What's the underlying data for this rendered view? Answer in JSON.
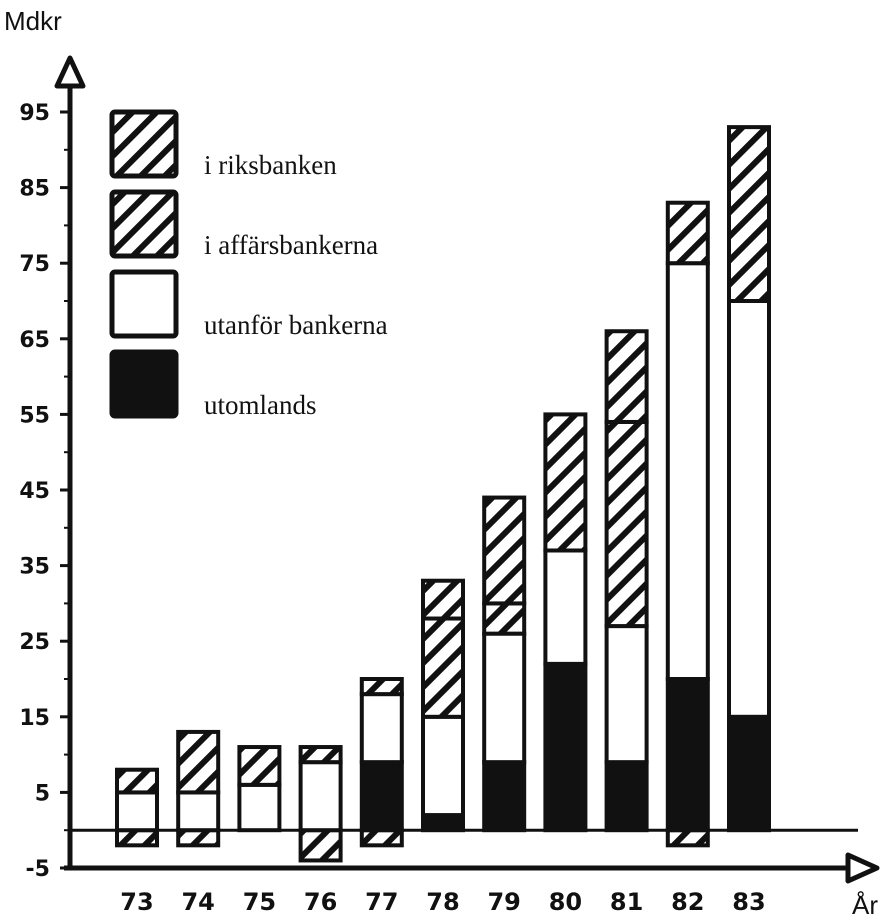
{
  "chart_data": {
    "type": "bar",
    "stacked": true,
    "ylabel": "Mdkr",
    "xlabel": "År",
    "ylim": [
      -5,
      95
    ],
    "yticks": [
      -5,
      5,
      15,
      25,
      35,
      45,
      55,
      65,
      75,
      85,
      95
    ],
    "ytick_labels": [
      "-5",
      "5",
      "15",
      "25",
      "35",
      "45",
      "55",
      "65",
      "75",
      "85",
      "95"
    ],
    "categories": [
      "73",
      "74",
      "75",
      "76",
      "77",
      "78",
      "79",
      "80",
      "81",
      "82",
      "83"
    ],
    "grid": false,
    "legend_position": "top-left",
    "series": [
      {
        "name": "i riksbanken",
        "pattern": "hatch",
        "values": [
          0,
          0,
          0,
          0,
          0,
          5,
          14,
          18,
          12,
          0,
          0
        ]
      },
      {
        "name": "i affärsbankerna",
        "pattern": "hatch",
        "values": [
          3,
          8,
          5,
          2,
          2,
          13,
          4,
          0,
          27,
          8,
          23
        ]
      },
      {
        "name": "utanför bankerna",
        "pattern": "white",
        "values": [
          5,
          5,
          6,
          9,
          9,
          13,
          17,
          15,
          18,
          55,
          55
        ]
      },
      {
        "name": "utomlands",
        "pattern": "black",
        "values": [
          0,
          0,
          0,
          0,
          9,
          2,
          9,
          22,
          9,
          20,
          15
        ]
      }
    ],
    "negative_values": [
      -2,
      -2,
      0,
      -4,
      -2,
      0,
      0,
      0,
      0,
      -2,
      0
    ],
    "totals": [
      8,
      13,
      11,
      11,
      20,
      33,
      44,
      55,
      66,
      83,
      93
    ]
  }
}
